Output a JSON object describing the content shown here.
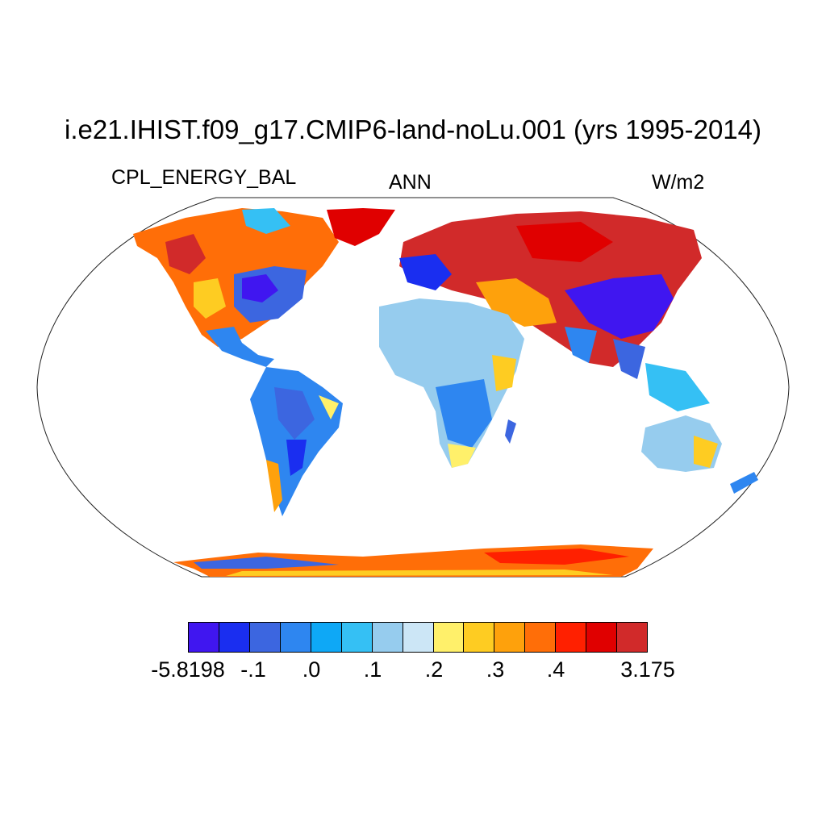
{
  "title": "i.e21.IHIST.f09_g17.CMIP6-land-noLu.001 (yrs 1995-2014)",
  "variable": "CPL_ENERGY_BAL",
  "season": "ANN",
  "units": "W/m2",
  "colorbar": {
    "colors": [
      "#4016f0",
      "#1a2ef0",
      "#3c66e0",
      "#2e86f0",
      "#0ea8f6",
      "#35c0f4",
      "#96ccee",
      "#cce6f6",
      "#fff06a",
      "#fecc22",
      "#fea10c",
      "#ff6e08",
      "#ff2000",
      "#e00000",
      "#d12a2a"
    ],
    "labels": [
      "-5.8198",
      "-.1",
      ".0",
      ".1",
      ".2",
      ".3",
      ".4",
      "3.175"
    ]
  }
}
